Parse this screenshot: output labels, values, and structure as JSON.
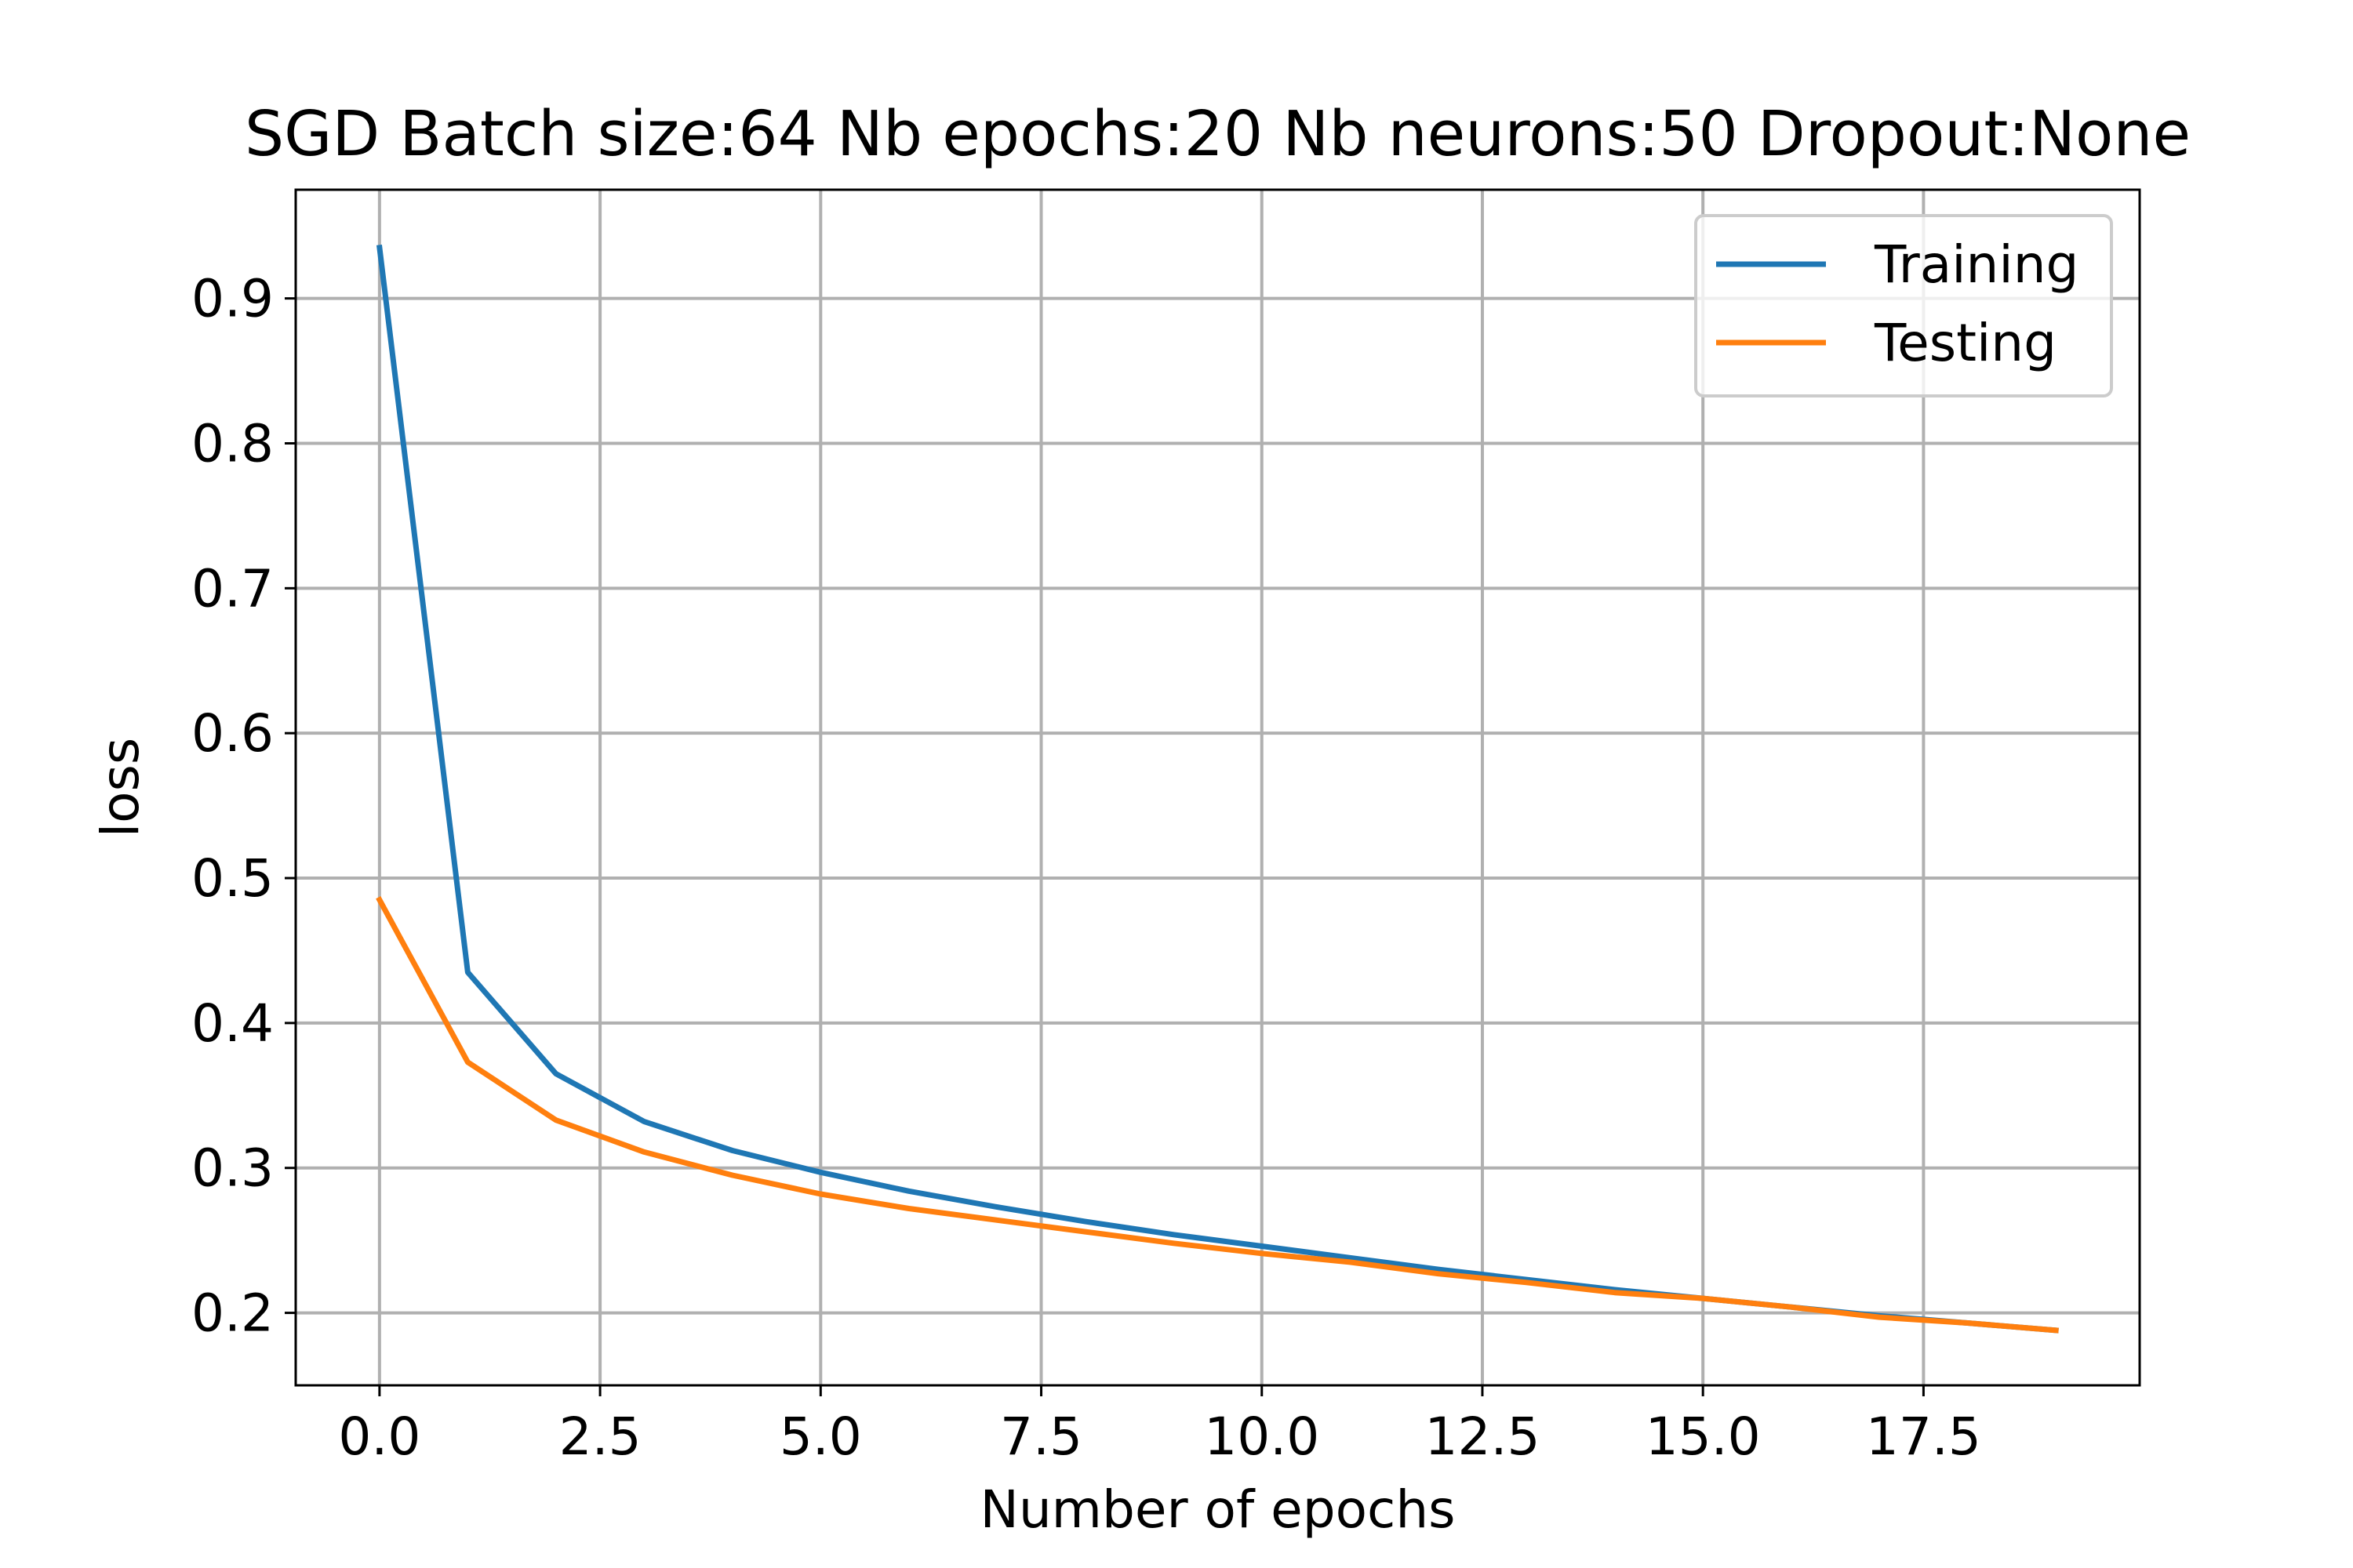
{
  "chart_data": {
    "type": "line",
    "title": "SGD Batch size:64 Nb epochs:20 Nb neurons:50 Dropout:None",
    "xlabel": "Number of epochs",
    "ylabel": "loss",
    "xlim": [
      -0.95,
      19.95
    ],
    "ylim": [
      0.15,
      0.975
    ],
    "xticks": [
      0.0,
      2.5,
      5.0,
      7.5,
      10.0,
      12.5,
      15.0,
      17.5
    ],
    "xtick_labels": [
      "0.0",
      "2.5",
      "5.0",
      "7.5",
      "10.0",
      "12.5",
      "15.0",
      "17.5"
    ],
    "yticks": [
      0.2,
      0.3,
      0.4,
      0.5,
      0.6,
      0.7,
      0.8,
      0.9
    ],
    "ytick_labels": [
      "0.2",
      "0.3",
      "0.4",
      "0.5",
      "0.6",
      "0.7",
      "0.8",
      "0.9"
    ],
    "grid": true,
    "legend_position": "top-right",
    "x": [
      0,
      1,
      2,
      3,
      4,
      5,
      6,
      7,
      8,
      9,
      10,
      11,
      12,
      13,
      14,
      15,
      16,
      17,
      18,
      19
    ],
    "series": [
      {
        "name": "Training",
        "color": "#1f77b4",
        "values": [
          0.935,
          0.435,
          0.365,
          0.332,
          0.312,
          0.297,
          0.284,
          0.273,
          0.263,
          0.254,
          0.246,
          0.238,
          0.23,
          0.223,
          0.216,
          0.21,
          0.204,
          0.198,
          0.193,
          0.188
        ]
      },
      {
        "name": "Testing",
        "color": "#ff7f0e",
        "values": [
          0.485,
          0.373,
          0.333,
          0.311,
          0.295,
          0.282,
          0.272,
          0.264,
          0.256,
          0.248,
          0.241,
          0.235,
          0.227,
          0.221,
          0.214,
          0.21,
          0.204,
          0.197,
          0.193,
          0.188
        ]
      }
    ]
  }
}
